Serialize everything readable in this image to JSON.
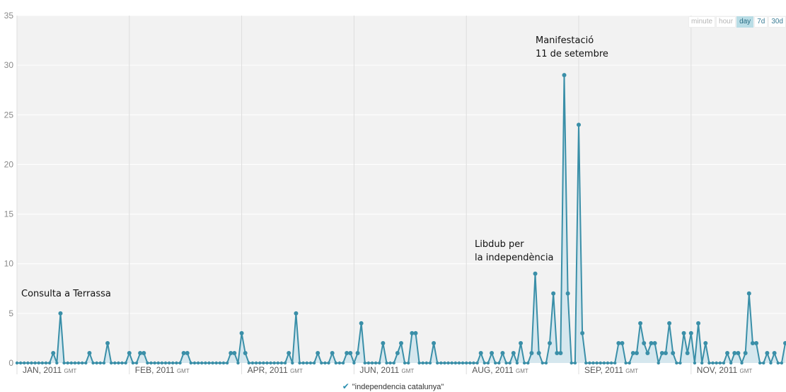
{
  "range_buttons": [
    {
      "label": "minute",
      "active": false
    },
    {
      "label": "hour",
      "active": false
    },
    {
      "label": "day",
      "active": true
    },
    {
      "label": "7d",
      "active": false
    },
    {
      "label": "30d",
      "active": false
    }
  ],
  "colors": {
    "line": "#3a8fa8",
    "fill": "#cde4ec",
    "plot_bg": "#f2f2f2",
    "grid": "#dddddd"
  },
  "chart_data": {
    "type": "area",
    "title": "",
    "xlabel": "",
    "ylabel": "",
    "ylim": [
      0,
      35
    ],
    "grid": true,
    "y_ticks": [
      "0",
      "5",
      "10",
      "15",
      "20",
      "25",
      "30",
      "35"
    ],
    "x_ticks": [
      {
        "label": "JAN, 2011",
        "suffix": "GMT",
        "day": 0
      },
      {
        "label": "FEB, 2011",
        "suffix": "GMT",
        "day": 31
      },
      {
        "label": "APR, 2011",
        "suffix": "GMT",
        "day": 62
      },
      {
        "label": "JUN, 2011",
        "suffix": "GMT",
        "day": 93
      },
      {
        "label": "AUG, 2011",
        "suffix": "GMT",
        "day": 124
      },
      {
        "label": "SEP, 2011",
        "suffix": "GMT",
        "day": 155
      },
      {
        "label": "NOV, 2011",
        "suffix": "GMT",
        "day": 186
      }
    ],
    "series": [
      {
        "name": "\"independencia catalunya\"",
        "points": [
          [
            0,
            0
          ],
          [
            10,
            1
          ],
          [
            12,
            5
          ],
          [
            20,
            1
          ],
          [
            25,
            2
          ],
          [
            31,
            1
          ],
          [
            34,
            1
          ],
          [
            35,
            1
          ],
          [
            46,
            1
          ],
          [
            47,
            1
          ],
          [
            59,
            1
          ],
          [
            60,
            1
          ],
          [
            62,
            3
          ],
          [
            63,
            1
          ],
          [
            75,
            1
          ],
          [
            77,
            5
          ],
          [
            83,
            1
          ],
          [
            87,
            1
          ],
          [
            91,
            1
          ],
          [
            92,
            1
          ],
          [
            94,
            1
          ],
          [
            95,
            4
          ],
          [
            101,
            2
          ],
          [
            105,
            1
          ],
          [
            106,
            2
          ],
          [
            109,
            3
          ],
          [
            110,
            3
          ],
          [
            115,
            2
          ],
          [
            128,
            1
          ],
          [
            131,
            1
          ],
          [
            134,
            1
          ],
          [
            137,
            1
          ],
          [
            139,
            2
          ],
          [
            142,
            1
          ],
          [
            143,
            9
          ],
          [
            144,
            1
          ],
          [
            147,
            2
          ],
          [
            148,
            7
          ],
          [
            149,
            1
          ],
          [
            150,
            1
          ],
          [
            151,
            29
          ],
          [
            152,
            7
          ],
          [
            155,
            24
          ],
          [
            156,
            3
          ],
          [
            166,
            2
          ],
          [
            167,
            2
          ],
          [
            170,
            1
          ],
          [
            171,
            1
          ],
          [
            172,
            4
          ],
          [
            173,
            2
          ],
          [
            174,
            1
          ],
          [
            175,
            2
          ],
          [
            176,
            2
          ],
          [
            178,
            1
          ],
          [
            179,
            1
          ],
          [
            180,
            4
          ],
          [
            181,
            1
          ],
          [
            184,
            3
          ],
          [
            185,
            1
          ],
          [
            186,
            3
          ],
          [
            188,
            4
          ],
          [
            190,
            2
          ],
          [
            196,
            1
          ],
          [
            198,
            1
          ],
          [
            199,
            1
          ],
          [
            201,
            1
          ],
          [
            202,
            7
          ],
          [
            203,
            2
          ],
          [
            204,
            2
          ],
          [
            207,
            1
          ],
          [
            209,
            1
          ],
          [
            212,
            2
          ]
        ]
      }
    ],
    "x_max": 212,
    "annotations": [
      {
        "lines": [
          "Consulta a Terrassa"
        ],
        "day": 0
      },
      {
        "lines": [
          "Libdub per",
          "la independència"
        ],
        "day": 134
      },
      {
        "lines": [
          "Manifestació",
          "11 de setembre"
        ],
        "day": 151
      }
    ]
  },
  "legend": {
    "label": "\"independencia catalunya\""
  }
}
